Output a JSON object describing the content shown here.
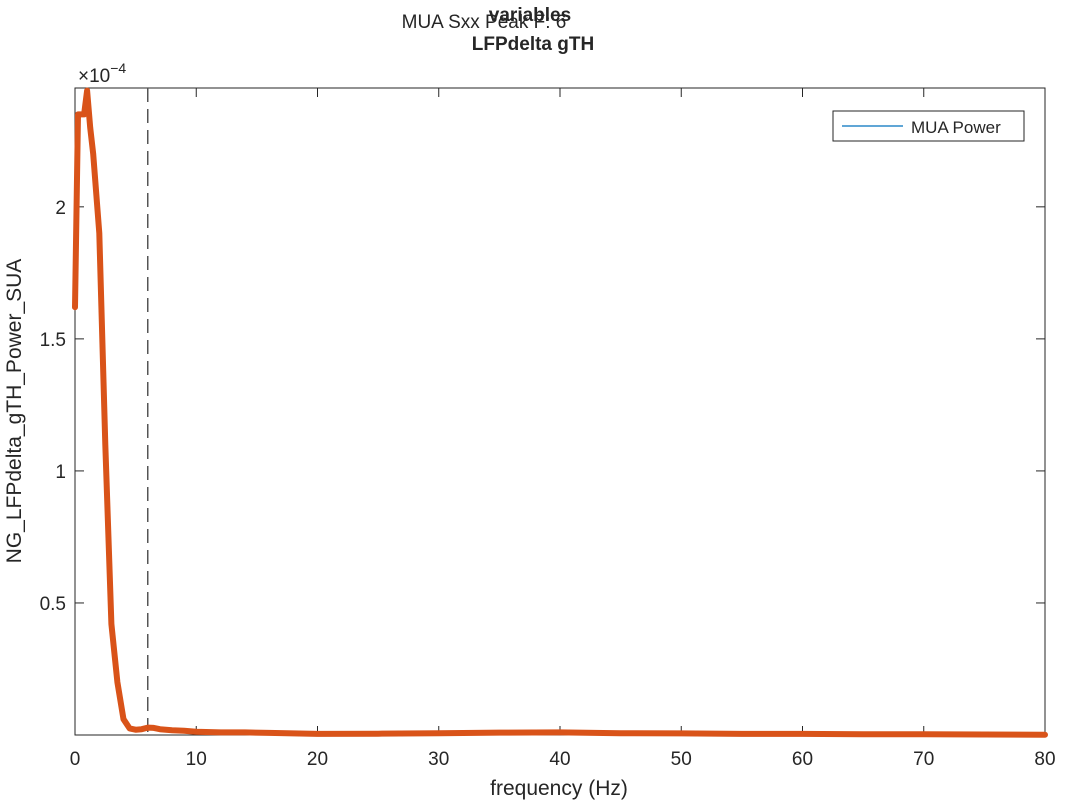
{
  "chart_data": {
    "type": "line",
    "titles": [
      "MUA Sxx Peak F: 6",
      "variables",
      "LFPdelta gTH"
    ],
    "xlabel": "frequency (Hz)",
    "ylabel": "NG_LFPdelta_gTH_Power_SUA",
    "exponent_base": "×10",
    "exponent_power": "−4",
    "xlim": [
      0,
      80
    ],
    "ylim": [
      0,
      2.45
    ],
    "y_multiplier": 0.0001,
    "xticks": [
      0,
      10,
      20,
      30,
      40,
      50,
      60,
      70,
      80
    ],
    "yticks": [
      0.5,
      1,
      1.5,
      2
    ],
    "ytick_labels": [
      "0.5",
      "1",
      "1.5",
      "2"
    ],
    "vline": {
      "x": 6,
      "style": "dashed",
      "color": "#555555"
    },
    "grid": false,
    "legend": {
      "placement": "top-right",
      "entries": [
        {
          "label": "MUA Power",
          "color": "#0072BD"
        }
      ]
    },
    "series": [
      {
        "color": "#D95319",
        "x": [
          0,
          0.25,
          0.5,
          0.75,
          1,
          1.25,
          1.5,
          2,
          2.5,
          3,
          3.5,
          4,
          4.5,
          5,
          5.5,
          6,
          6.5,
          7,
          8,
          9,
          10,
          12,
          14,
          16,
          18,
          20,
          25,
          30,
          35,
          40,
          45,
          50,
          55,
          60,
          65,
          70,
          75,
          80
        ],
        "y": [
          1.62,
          2.35,
          2.35,
          2.35,
          2.44,
          2.3,
          2.2,
          1.9,
          1.1,
          0.42,
          0.2,
          0.06,
          0.025,
          0.02,
          0.022,
          0.028,
          0.027,
          0.022,
          0.018,
          0.016,
          0.012,
          0.01,
          0.01,
          0.008,
          0.006,
          0.004,
          0.005,
          0.007,
          0.009,
          0.01,
          0.007,
          0.006,
          0.004,
          0.004,
          0.003,
          0.003,
          0.002,
          0.001
        ]
      }
    ]
  }
}
